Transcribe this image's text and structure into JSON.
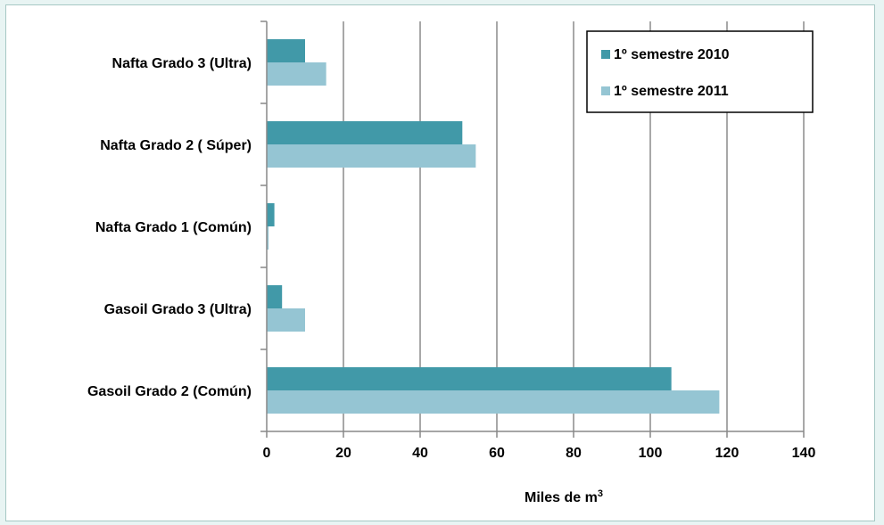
{
  "chart_data": {
    "type": "bar",
    "orientation": "horizontal",
    "categories": [
      "Nafta Grado 3 (Ultra)",
      "Nafta Grado 2 ( Súper)",
      "Nafta Grado 1 (Común)",
      "Gasoil Grado 3 (Ultra)",
      "Gasoil Grado 2 (Común)"
    ],
    "series": [
      {
        "name": "1º semestre 2010",
        "color": "#4199a8",
        "values": [
          10,
          51,
          2,
          4,
          105.5
        ]
      },
      {
        "name": "1º semestre 2011",
        "color": "#95c5d3",
        "values": [
          15.5,
          54.5,
          0.5,
          10,
          118
        ]
      }
    ],
    "xlabel": "Miles de m",
    "xlabel_superscript": "3",
    "xlim": [
      0,
      140
    ],
    "xticks": [
      "0",
      "20",
      "40",
      "60",
      "80",
      "100",
      "120",
      "140"
    ],
    "grid": "vertical",
    "legend_position": "top-right"
  }
}
